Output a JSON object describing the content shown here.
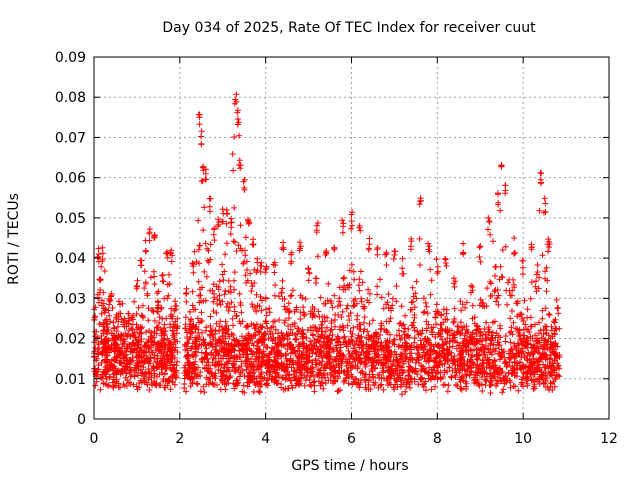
{
  "chart_data": {
    "type": "scatter",
    "title": "Day 034 of 2025, Rate Of TEC Index for receiver cuut",
    "xlabel": "GPS time / hours",
    "ylabel": "ROTI / TECUs",
    "xlim": [
      0,
      12
    ],
    "ylim": [
      0,
      0.09
    ],
    "x_ticks": [
      0,
      2,
      4,
      6,
      8,
      10,
      12
    ],
    "y_ticks": [
      0,
      0.01,
      0.02,
      0.03,
      0.04,
      0.05,
      0.06,
      0.07,
      0.08,
      0.09
    ],
    "x_tick_labels": [
      "0",
      "2",
      "4",
      "6",
      "8",
      "10",
      "12"
    ],
    "y_tick_labels": [
      "0",
      "0.01",
      "0.02",
      "0.03",
      "0.04",
      "0.05",
      "0.06",
      "0.07",
      "0.08",
      "0.09"
    ],
    "grid": true,
    "marker": "+",
    "color": "#ff0000",
    "data_range_x": [
      0,
      10.85
    ],
    "gap_x": [
      1.95,
      2.1
    ],
    "x": [
      0.02,
      0.1,
      0.15,
      0.2,
      0.25,
      0.3,
      0.35,
      0.4,
      0.45,
      0.5,
      0.6,
      0.7,
      0.8,
      0.9,
      1.0,
      1.1,
      1.2,
      1.3,
      1.4,
      1.5,
      1.6,
      1.7,
      1.8,
      1.9,
      2.15,
      2.3,
      2.45,
      2.5,
      2.55,
      2.6,
      2.7,
      2.8,
      2.9,
      3.0,
      3.1,
      3.2,
      3.3,
      3.35,
      3.4,
      3.5,
      3.6,
      3.7,
      3.8,
      3.9,
      4.0,
      4.2,
      4.4,
      4.6,
      4.8,
      5.0,
      5.2,
      5.4,
      5.6,
      5.8,
      6.0,
      6.2,
      6.4,
      6.6,
      6.8,
      7.0,
      7.2,
      7.4,
      7.6,
      7.8,
      8.0,
      8.2,
      8.4,
      8.6,
      8.8,
      9.0,
      9.2,
      9.4,
      9.5,
      9.6,
      9.8,
      10.0,
      10.2,
      10.4,
      10.5,
      10.6,
      10.8
    ],
    "y": [
      0.028,
      0.043,
      0.035,
      0.043,
      0.02,
      0.025,
      0.03,
      0.032,
      0.015,
      0.02,
      0.03,
      0.025,
      0.027,
      0.025,
      0.035,
      0.04,
      0.045,
      0.048,
      0.049,
      0.03,
      0.038,
      0.044,
      0.042,
      0.03,
      0.033,
      0.04,
      0.077,
      0.072,
      0.063,
      0.063,
      0.055,
      0.048,
      0.05,
      0.053,
      0.052,
      0.05,
      0.081,
      0.077,
      0.065,
      0.06,
      0.052,
      0.045,
      0.04,
      0.04,
      0.038,
      0.04,
      0.045,
      0.042,
      0.045,
      0.04,
      0.05,
      0.043,
      0.044,
      0.05,
      0.052,
      0.05,
      0.045,
      0.043,
      0.042,
      0.042,
      0.04,
      0.045,
      0.055,
      0.045,
      0.04,
      0.04,
      0.035,
      0.044,
      0.035,
      0.043,
      0.05,
      0.057,
      0.065,
      0.06,
      0.045,
      0.04,
      0.045,
      0.062,
      0.055,
      0.045,
      0.03
    ]
  }
}
